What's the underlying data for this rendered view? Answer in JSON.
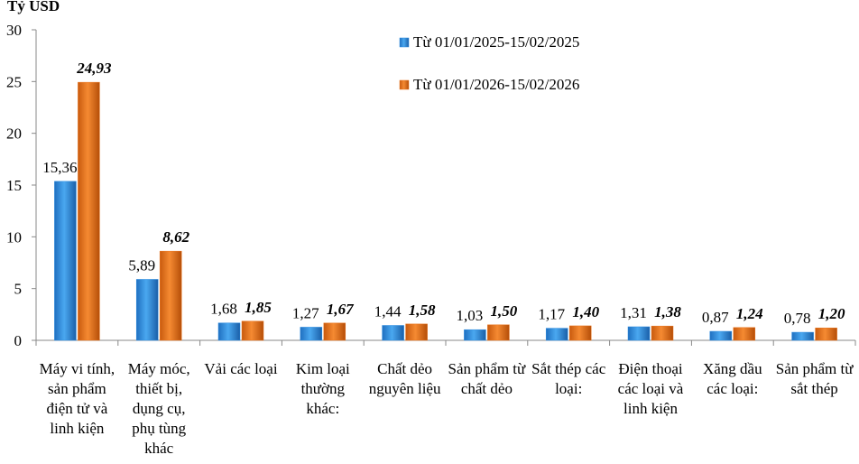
{
  "chart_data": {
    "type": "bar",
    "y_label": "Tỷ USD",
    "categories": [
      "Máy vi tính, sản phẩm điện tử và linh kiện",
      "Máy móc, thiết bị, dụng cụ, phụ tùng khác",
      "Vải các loại",
      "Kim loại thường khác:",
      "Chất dẻo nguyên liệu",
      "Sản phẩm từ chất dẻo",
      "Sắt thép các loại:",
      "Điện thoại các loại và linh kiện",
      "Xăng dầu các loại:",
      "Sản phẩm từ sắt thép"
    ],
    "series": [
      {
        "name": "Từ 01/01/2025-15/02/2025",
        "color": "#2e8de0",
        "values": [
          15.36,
          5.89,
          1.68,
          1.27,
          1.44,
          1.03,
          1.17,
          1.31,
          0.87,
          0.78
        ],
        "value_labels": [
          "15,36",
          "5,89",
          "1,68",
          "1,27",
          "1,44",
          "1,03",
          "1,17",
          "1,31",
          "0,87",
          "0,78"
        ]
      },
      {
        "name": "Từ 01/01/2026-15/02/2026",
        "color": "#e8731c",
        "values": [
          24.93,
          8.62,
          1.85,
          1.67,
          1.58,
          1.5,
          1.4,
          1.38,
          1.24,
          1.2
        ],
        "value_labels": [
          "24,93",
          "8,62",
          "1,85",
          "1,67",
          "1,58",
          "1,50",
          "1,40",
          "1,38",
          "1,24",
          "1,20"
        ]
      }
    ],
    "ylim": [
      0,
      30
    ],
    "yticks": [
      0,
      5,
      10,
      15,
      20,
      25,
      30
    ],
    "grid": false
  }
}
